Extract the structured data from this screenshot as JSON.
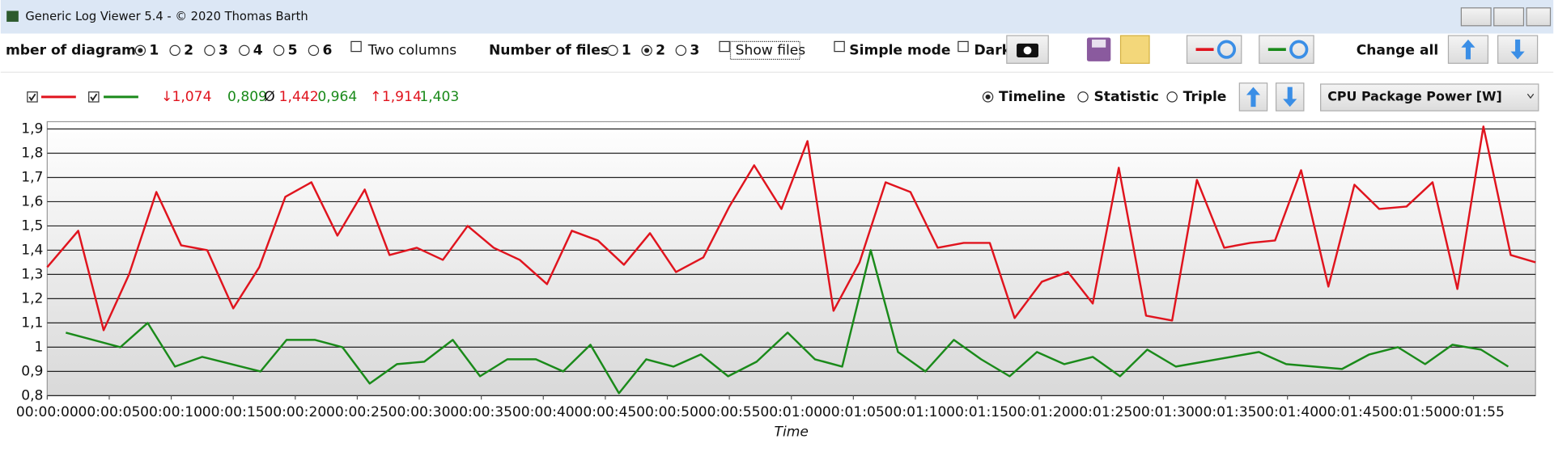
{
  "window": {
    "title": "Generic Log Viewer 5.4 - © 2020 Thomas Barth"
  },
  "toolbar": {
    "diagrams_label": "mber of diagrams",
    "diagram_options": [
      "1",
      "2",
      "3",
      "4",
      "5",
      "6"
    ],
    "two_columns": "Two columns",
    "files_label": "Number of files",
    "file_options": [
      "1",
      "2",
      "3"
    ],
    "show_files": "Show files",
    "simple_mode": "Simple mode",
    "dark": "Dark",
    "change_all": "Change all"
  },
  "stats": {
    "min_symbol": "↓",
    "min_values": [
      "1,074",
      "0,809"
    ],
    "avg_symbol": "Ø",
    "avg_values": [
      "1,442",
      "0,964"
    ],
    "max_symbol": "↑",
    "max_values": [
      "1,914",
      "1,403"
    ]
  },
  "view": {
    "modes": [
      "Timeline",
      "Statistic",
      "Triple"
    ],
    "selected_channel": "CPU Package Power [W]"
  },
  "chart_data": {
    "type": "line",
    "x_label": "Time",
    "grid": true,
    "xlim": [
      0,
      120
    ],
    "ylim": [
      0.8,
      1.93
    ],
    "xticks": [
      {
        "value": 0,
        "label": "00:00:00"
      },
      {
        "value": 5,
        "label": "00:00:05"
      },
      {
        "value": 10,
        "label": "00:00:10"
      },
      {
        "value": 15,
        "label": "00:00:15"
      },
      {
        "value": 20,
        "label": "00:00:20"
      },
      {
        "value": 25,
        "label": "00:00:25"
      },
      {
        "value": 30,
        "label": "00:00:30"
      },
      {
        "value": 35,
        "label": "00:00:35"
      },
      {
        "value": 40,
        "label": "00:00:40"
      },
      {
        "value": 45,
        "label": "00:00:45"
      },
      {
        "value": 50,
        "label": "00:00:50"
      },
      {
        "value": 55,
        "label": "00:00:55"
      },
      {
        "value": 60,
        "label": "00:01:00"
      },
      {
        "value": 65,
        "label": "00:01:05"
      },
      {
        "value": 70,
        "label": "00:01:10"
      },
      {
        "value": 75,
        "label": "00:01:15"
      },
      {
        "value": 80,
        "label": "00:01:20"
      },
      {
        "value": 85,
        "label": "00:01:25"
      },
      {
        "value": 90,
        "label": "00:01:30"
      },
      {
        "value": 95,
        "label": "00:01:35"
      },
      {
        "value": 100,
        "label": "00:01:40"
      },
      {
        "value": 105,
        "label": "00:01:45"
      },
      {
        "value": 110,
        "label": "00:01:50"
      },
      {
        "value": 115,
        "label": "00:01:55"
      }
    ],
    "yticks": [
      {
        "value": 0.8,
        "label": "0,8"
      },
      {
        "value": 0.9,
        "label": "0,9"
      },
      1,
      {
        "value": 1.1,
        "label": "1,1"
      },
      {
        "value": 1.2,
        "label": "1,2"
      },
      {
        "value": 1.3,
        "label": "1,3"
      },
      {
        "value": 1.4,
        "label": "1,4"
      },
      {
        "value": 1.5,
        "label": "1,5"
      },
      {
        "value": 1.6,
        "label": "1,6"
      },
      {
        "value": 1.7,
        "label": "1,7"
      },
      {
        "value": 1.8,
        "label": "1,8"
      },
      {
        "value": 1.9,
        "label": "1,9"
      }
    ],
    "series": [
      {
        "color": "#e0141e",
        "x": [
          0,
          2.5,
          4.55,
          6.6,
          8.8,
          10.8,
          12.9,
          15,
          17.1,
          19.2,
          21.3,
          23.4,
          25.6,
          27.6,
          29.8,
          31.9,
          33.9,
          36,
          38.1,
          40.3,
          42.3,
          44.4,
          46.5,
          48.6,
          50.7,
          52.9,
          55,
          57,
          59.2,
          61.3,
          63.4,
          65.5,
          67.6,
          69.6,
          71.8,
          73.9,
          76,
          78,
          80.2,
          82.3,
          84.3,
          86.4,
          88.6,
          90.7,
          92.7,
          94.9,
          97,
          99,
          101.1,
          103.3,
          105.4,
          107.4,
          109.6,
          111.7,
          113.7,
          115.8,
          118,
          120
        ],
        "values": [
          1.33,
          1.48,
          1.07,
          1.3,
          1.64,
          1.42,
          1.4,
          1.16,
          1.33,
          1.62,
          1.68,
          1.46,
          1.65,
          1.38,
          1.41,
          1.36,
          1.5,
          1.41,
          1.36,
          1.26,
          1.48,
          1.44,
          1.34,
          1.47,
          1.31,
          1.37,
          1.58,
          1.75,
          1.57,
          1.85,
          1.15,
          1.35,
          1.68,
          1.64,
          1.41,
          1.43,
          1.43,
          1.12,
          1.27,
          1.31,
          1.18,
          1.74,
          1.13,
          1.11,
          1.69,
          1.41,
          1.43,
          1.44,
          1.73,
          1.25,
          1.67,
          1.57,
          1.58,
          1.68,
          1.24,
          1.91,
          1.38,
          1.35
        ]
      },
      {
        "color": "#1a8a1a",
        "x": [
          1.5,
          5.9,
          8.1,
          10.3,
          12.5,
          17.2,
          19.3,
          21.6,
          23.8,
          26,
          28.2,
          30.4,
          32.7,
          34.9,
          37.1,
          39.4,
          41.6,
          43.8,
          46.1,
          48.3,
          50.5,
          52.7,
          54.9,
          57.2,
          59.7,
          61.9,
          64.1,
          66.4,
          68.6,
          70.8,
          73.1,
          75.3,
          77.6,
          79.8,
          82,
          84.3,
          86.5,
          88.7,
          91,
          97.7,
          99.9,
          104.4,
          106.6,
          108.9,
          111.1,
          113.3,
          115.6,
          117.8
        ],
        "values": [
          1.06,
          1,
          1.1,
          0.92,
          0.96,
          0.9,
          1.03,
          1.03,
          1,
          0.85,
          0.93,
          0.94,
          1.03,
          0.88,
          0.95,
          0.95,
          0.9,
          1.01,
          0.81,
          0.95,
          0.92,
          0.97,
          0.88,
          0.94,
          1.06,
          0.95,
          0.92,
          1.4,
          0.98,
          0.9,
          1.03,
          0.95,
          0.88,
          0.98,
          0.93,
          0.96,
          0.88,
          0.99,
          0.92,
          0.98,
          0.93,
          0.91,
          0.97,
          1,
          0.93,
          1.01,
          0.99,
          0.92
        ]
      }
    ]
  }
}
